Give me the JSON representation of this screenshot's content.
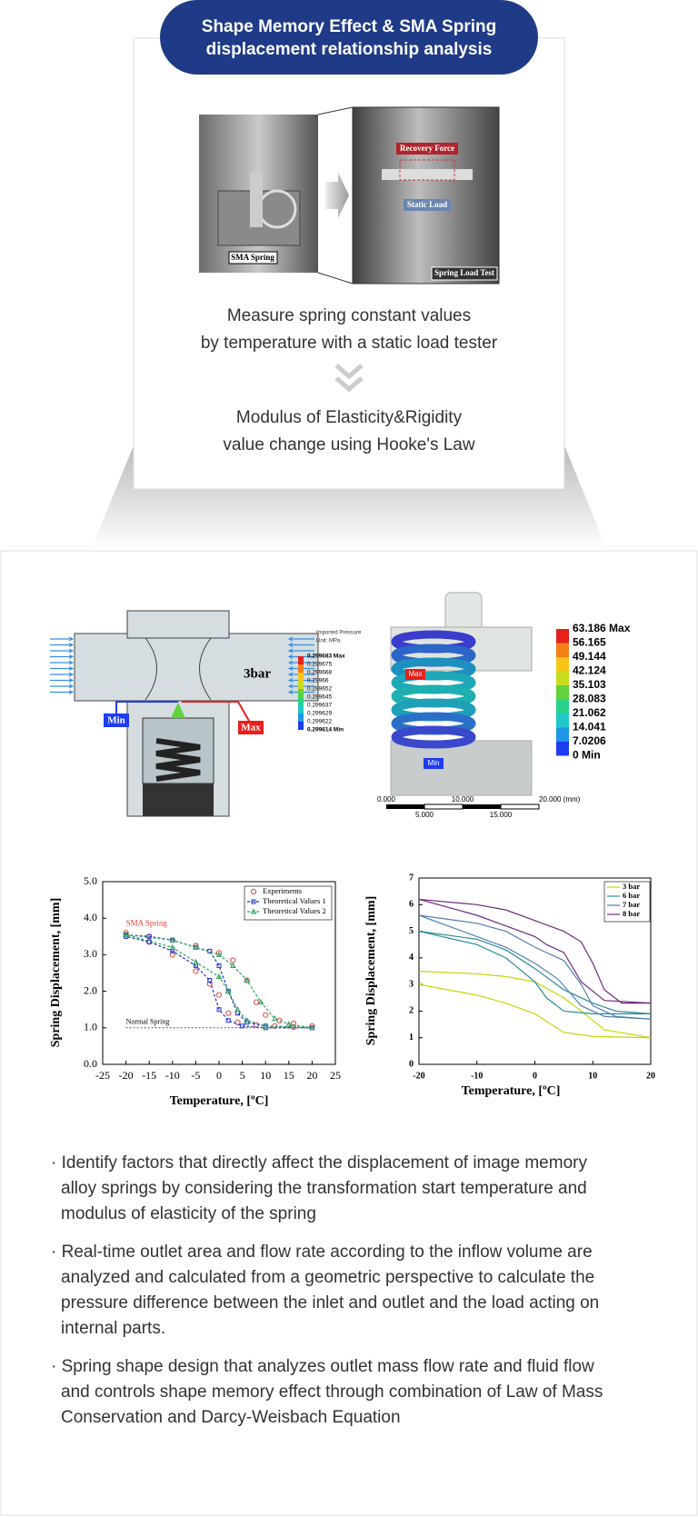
{
  "header": {
    "title": [
      "Shape Memory Effect & SMA  Spring",
      "displacement relationship analysis"
    ]
  },
  "photos": {
    "left_label": "SMA Spring",
    "recovery": "Recovery Force",
    "static": "Static Load",
    "test": "Spring Load Test"
  },
  "process": {
    "step1": [
      "Measure spring constant values",
      "by temperature with a static load tester"
    ],
    "step2": [
      "Modulus of Elasticity&Rigidity",
      "value change using Hooke's Law"
    ]
  },
  "simulation_left": {
    "label": "3bar",
    "min_label": "Min",
    "max_label": "Max",
    "legend_title": [
      "Imported Pressure",
      "Unit: MPa"
    ],
    "legend": [
      "0.299683 Max",
      "0.299675",
      "0.299668",
      "0.29966",
      "0.299652",
      "0.299645",
      "0.299637",
      "0.299629",
      "0.299622",
      "0.299614 Min"
    ],
    "legend_colors": [
      "#e8201c",
      "#f57f17",
      "#f5c518",
      "#c8dc1e",
      "#5fd23c",
      "#28d28c",
      "#1ec8c8",
      "#1e96e6",
      "#1e3cf0"
    ]
  },
  "simulation_right": {
    "min_label": "Min",
    "max_label": "Max",
    "legend": [
      "63.186 Max",
      "56.165",
      "49.144",
      "42.124",
      "35.103",
      "28.083",
      "21.062",
      "14.041",
      "7.0206",
      "0 Min"
    ],
    "legend_colors": [
      "#e8201c",
      "#f57f17",
      "#f5c518",
      "#c8dc1e",
      "#5fd23c",
      "#28d28c",
      "#1ec8c8",
      "#1e96e6",
      "#1e3cf0"
    ],
    "scale_top": [
      "0.000",
      "10.000",
      "20.000 (mm)"
    ],
    "scale_bottom": [
      "5.000",
      "15.000"
    ]
  },
  "chart_data": [
    {
      "type": "line",
      "xlabel": "Temperature, [ºC]",
      "ylabel": "Spring Displacement, [mm]",
      "xlim": [
        -25,
        25
      ],
      "xticks": [
        -25,
        -20,
        -15,
        -10,
        -5,
        0,
        5,
        10,
        15,
        20,
        25
      ],
      "ylim": [
        0,
        5
      ],
      "yticks": [
        {
          "value": 0,
          "label": "0.0"
        },
        {
          "value": 1,
          "label": "1.0"
        },
        {
          "value": 2,
          "label": "2.0"
        },
        {
          "value": 3,
          "label": "3.0"
        },
        {
          "value": 4,
          "label": "4.0"
        },
        {
          "value": 5,
          "label": "5.0"
        }
      ],
      "annotations": [
        "SMA Spring"
      ],
      "reference_line": {
        "label": "Normal Spring",
        "value": 1
      },
      "series": [
        {
          "name": "Experiments",
          "color": "#e0453a",
          "marker": "circle",
          "dash": false,
          "x": [
            -20,
            -15,
            -10,
            -5,
            0,
            3,
            6,
            8,
            10,
            13,
            16,
            20,
            16,
            12,
            8,
            4,
            2,
            0,
            -2,
            -5,
            -10,
            -15,
            -20
          ],
          "values": [
            3.6,
            3.5,
            3.4,
            3.25,
            3.05,
            2.85,
            2.3,
            1.7,
            1.35,
            1.2,
            1.12,
            1.05,
            1.02,
            1.05,
            1.08,
            1.15,
            1.4,
            1.9,
            2.2,
            2.55,
            3.0,
            3.35,
            3.5
          ]
        },
        {
          "name": "Theoretical Values 1",
          "color": "#2233cc",
          "marker": "square",
          "dash": true,
          "x": [
            -20,
            -15,
            -10,
            -5,
            -2,
            0,
            2,
            4,
            6,
            10,
            20,
            10,
            5,
            2,
            0,
            -2,
            -5,
            -10,
            -15,
            -20
          ],
          "values": [
            3.55,
            3.5,
            3.4,
            3.2,
            3.1,
            2.7,
            2.0,
            1.4,
            1.15,
            1.05,
            1.0,
            1.0,
            1.05,
            1.2,
            1.5,
            2.3,
            2.7,
            3.1,
            3.35,
            3.5
          ]
        },
        {
          "name": "Theoretical Values 2",
          "color": "#2ca25f",
          "marker": "triangle",
          "dash": true,
          "x": [
            -20,
            -10,
            -5,
            0,
            3,
            6,
            9,
            12,
            15,
            20,
            10,
            6,
            4,
            2,
            0,
            -5,
            -10,
            -20
          ],
          "values": [
            3.55,
            3.4,
            3.2,
            3.0,
            2.7,
            2.3,
            1.7,
            1.25,
            1.1,
            1.0,
            1.05,
            1.2,
            1.5,
            2.0,
            2.4,
            2.8,
            3.2,
            3.55
          ]
        }
      ]
    },
    {
      "type": "line",
      "xlabel": "Temperature, [ºC]",
      "ylabel": "Spring Displacement, [mm]",
      "xlim": [
        -20,
        20
      ],
      "xticks": [
        -20,
        -10,
        0,
        10,
        20
      ],
      "ylim": [
        0,
        7
      ],
      "yticks": [
        0,
        1,
        2,
        3,
        4,
        5,
        6,
        7
      ],
      "series": [
        {
          "name": "3 bar",
          "color": "#c8d400",
          "x": [
            -20,
            -10,
            -5,
            0,
            5,
            8,
            12,
            20,
            10,
            5,
            0,
            -5,
            -10,
            -20
          ],
          "values": [
            3.5,
            3.4,
            3.3,
            3.1,
            2.5,
            2.0,
            1.3,
            1.0,
            1.05,
            1.2,
            1.9,
            2.3,
            2.6,
            3.0
          ]
        },
        {
          "name": "6 bar",
          "color": "#2a8a9a",
          "x": [
            -20,
            -10,
            -5,
            0,
            5,
            10,
            14,
            20,
            10,
            5,
            2,
            0,
            -5,
            -10,
            -20
          ],
          "values": [
            5.0,
            4.7,
            4.3,
            3.6,
            2.8,
            2.3,
            2.0,
            1.9,
            1.9,
            2.0,
            2.5,
            3.1,
            4.0,
            4.5,
            5.0
          ]
        },
        {
          "name": "7 bar",
          "color": "#5080b0",
          "x": [
            -20,
            -10,
            -5,
            0,
            5,
            8,
            10,
            14,
            20,
            12,
            8,
            4,
            0,
            -5,
            -10,
            -20
          ],
          "values": [
            5.6,
            5.3,
            5.0,
            4.4,
            3.9,
            3.0,
            2.2,
            1.8,
            1.7,
            1.8,
            2.2,
            3.2,
            3.8,
            4.4,
            4.8,
            5.6
          ]
        },
        {
          "name": "8 bar",
          "color": "#702a80",
          "x": [
            -20,
            -10,
            -5,
            0,
            5,
            8,
            10,
            12,
            15,
            20,
            12,
            8,
            5,
            2,
            0,
            -5,
            -10,
            -20
          ],
          "values": [
            6.2,
            6.0,
            5.8,
            5.4,
            5.0,
            4.6,
            3.8,
            2.8,
            2.3,
            2.3,
            2.4,
            3.1,
            4.2,
            4.5,
            4.8,
            5.2,
            5.6,
            6.2
          ]
        }
      ]
    }
  ],
  "notes": [
    "· Identify factors that directly affect the displacement of image memory alloy springs by considering the transformation start temperature and modulus of elasticity of the spring",
    "· Real-time outlet area and flow rate according to the inflow volume are analyzed and calculated from a geometric perspective to calculate the pressure difference between the inlet and outlet and the load acting on internal parts.",
    "· Spring shape design that analyzes outlet mass flow rate and fluid flow and controls shape memory effect through combination of Law of Mass Conservation and Darcy-Weisbach Equation"
  ]
}
